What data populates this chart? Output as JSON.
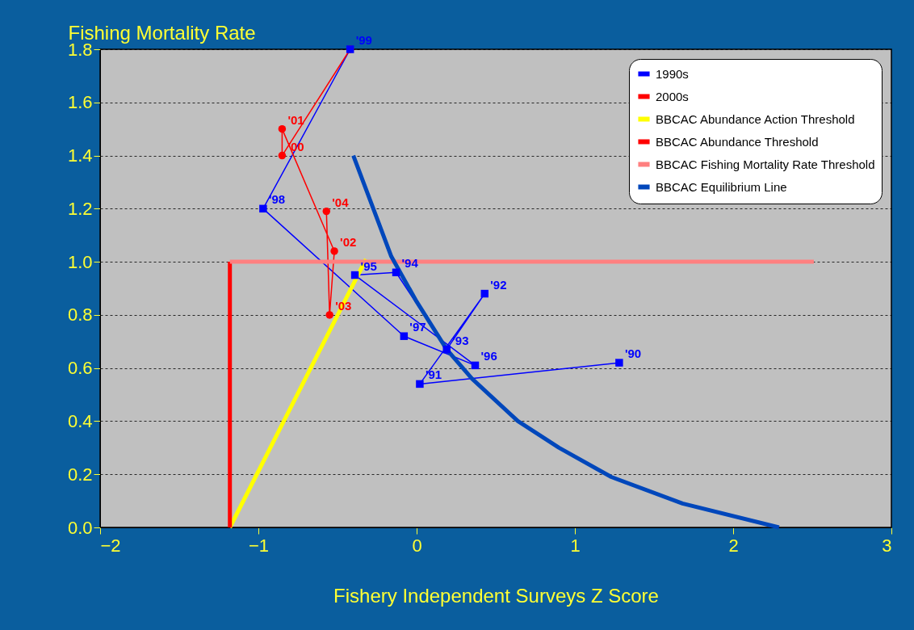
{
  "chart_data": {
    "type": "line",
    "ylabel": "Fishing Mortality Rate",
    "xlabel": "Fishery Independent Surveys Z Score",
    "xlim": [
      -2,
      3
    ],
    "xticks": [
      -2,
      -1,
      0,
      1,
      2,
      3
    ],
    "ylim": [
      0,
      1.8
    ],
    "yticks": [
      {
        "value": 0,
        "label": "0.0"
      },
      {
        "value": 0.2,
        "label": "0.2"
      },
      {
        "value": 0.4,
        "label": "0.4"
      },
      {
        "value": 0.6,
        "label": "0.6"
      },
      {
        "value": 0.8,
        "label": "0.8"
      },
      {
        "value": 1.0,
        "label": "1.0"
      },
      {
        "value": 1.2,
        "label": "1.2"
      },
      {
        "value": 1.4,
        "label": "1.4"
      },
      {
        "value": 1.6,
        "label": "1.6"
      },
      {
        "value": 1.8,
        "label": "1.8"
      }
    ],
    "grid": "y",
    "legend": "top right",
    "series": [
      {
        "name": "1990s",
        "marker": "square",
        "color": "#0000ff",
        "x": [
          1.28,
          0.02,
          0.43,
          0.19,
          -0.13,
          -0.39,
          0.37,
          -0.08,
          -0.97,
          -0.42
        ],
        "values": [
          0.62,
          0.54,
          0.88,
          0.67,
          0.96,
          0.95,
          0.61,
          0.72,
          1.2,
          1.8
        ]
      },
      {
        "name": "2000s",
        "marker": "circle",
        "color": "#ff0000",
        "x": [
          -0.42,
          -0.85,
          -0.85,
          -0.52,
          -0.55,
          -0.57
        ],
        "values": [
          1.8,
          1.4,
          1.5,
          1.04,
          0.8,
          1.19
        ]
      },
      {
        "name": "BBCAC Abundance Action Threshold",
        "color": "#ffff00",
        "x": [
          -1.18,
          -0.32
        ],
        "values": [
          0,
          1.01
        ]
      },
      {
        "name": "BBCAC Abundance Threshold",
        "color": "#ff0000",
        "x": [
          -1.18,
          -1.18
        ],
        "values": [
          0,
          1.0
        ]
      },
      {
        "name": "BBCAC Fishing Mortality Rate Threshold",
        "color": "#ff8080",
        "x": [
          -1.18,
          2.51
        ],
        "values": [
          1.0,
          1.0
        ]
      },
      {
        "name": "BBCAC Equilibrium Line",
        "color": "#0047bb",
        "x": [
          -0.4,
          -0.16,
          0.0,
          0.19,
          0.35,
          0.64,
          0.9,
          1.23,
          1.68,
          2.29
        ],
        "values": [
          1.4,
          1.02,
          0.85,
          0.67,
          0.56,
          0.4,
          0.3,
          0.19,
          0.09,
          0.0
        ]
      }
    ],
    "annotations": [
      {
        "text": "'90",
        "x": 1.28,
        "y": 0.62
      },
      {
        "text": "'91",
        "x": 0.02,
        "y": 0.54
      },
      {
        "text": "'92",
        "x": 0.43,
        "y": 0.88
      },
      {
        "text": "'93",
        "x": 0.19,
        "y": 0.67
      },
      {
        "text": "'94",
        "x": -0.13,
        "y": 0.96
      },
      {
        "text": "'95",
        "x": -0.39,
        "y": 0.95
      },
      {
        "text": "'96",
        "x": 0.37,
        "y": 0.61
      },
      {
        "text": "'97",
        "x": -0.08,
        "y": 0.72
      },
      {
        "text": "'98",
        "x": -0.97,
        "y": 1.2
      },
      {
        "text": "'99",
        "x": -0.42,
        "y": 1.8
      },
      {
        "text": "'00",
        "x": -0.85,
        "y": 1.4
      },
      {
        "text": "'01",
        "x": -0.85,
        "y": 1.5
      },
      {
        "text": "'02",
        "x": -0.52,
        "y": 1.04
      },
      {
        "text": "'03",
        "x": -0.55,
        "y": 0.8
      },
      {
        "text": "'04",
        "x": -0.57,
        "y": 1.19
      }
    ]
  }
}
